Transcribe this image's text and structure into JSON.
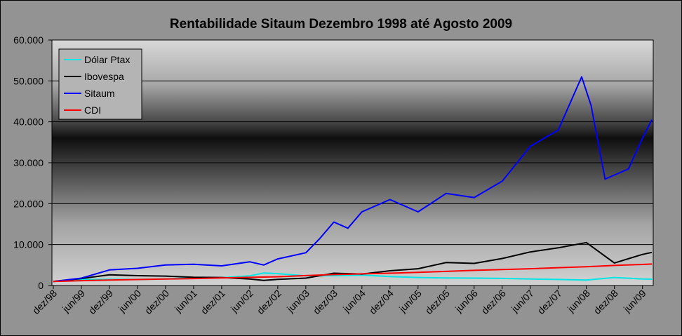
{
  "chart_data": {
    "type": "line",
    "title": "Rentabilidade Sitaum  Dezembro 1998 até Agosto 2009",
    "xlabel": "",
    "ylabel": "",
    "ylim": [
      0,
      60000
    ],
    "y_ticks": [
      0,
      10000,
      20000,
      30000,
      40000,
      50000,
      60000
    ],
    "y_tick_labels": [
      "0",
      "10.000",
      "20.000",
      "30.000",
      "40.000",
      "50.000",
      "60.000"
    ],
    "x_tick_labels": [
      "dez/98",
      "jun/99",
      "dez/99",
      "jun/00",
      "dez/00",
      "jun/01",
      "dez/01",
      "jun/02",
      "dez/02",
      "jun/03",
      "dez/03",
      "jun/04",
      "dez/04",
      "jun/05",
      "dez/05",
      "jun/06",
      "dez/06",
      "jun/07",
      "dez/07",
      "jun/08",
      "dez/08",
      "jun/09"
    ],
    "grid": true,
    "legend_position": "top-left",
    "series": [
      {
        "name": "Dólar Ptax",
        "color": "#00e5e5",
        "x": [
          "dez/98",
          "jun/99",
          "dez/99",
          "jun/00",
          "dez/00",
          "jun/01",
          "dez/01",
          "jun/02",
          "set/02",
          "dez/02",
          "jun/03",
          "dez/03",
          "jun/04",
          "dez/04",
          "jun/05",
          "dez/05",
          "jun/06",
          "dez/06",
          "jun/07",
          "dez/07",
          "jun/08",
          "dez/08",
          "jun/09",
          "ago/09"
        ],
        "values": [
          1000,
          1450,
          1500,
          1470,
          1620,
          1870,
          1900,
          2350,
          3050,
          2900,
          2350,
          2400,
          2550,
          2200,
          1950,
          1830,
          1800,
          1740,
          1580,
          1480,
          1340,
          1950,
          1600,
          1540
        ]
      },
      {
        "name": "Ibovespa",
        "color": "#000000",
        "x": [
          "dez/98",
          "jun/99",
          "dez/99",
          "jun/00",
          "dez/00",
          "jun/01",
          "dez/01",
          "jun/02",
          "set/02",
          "dez/02",
          "jun/03",
          "dez/03",
          "jun/04",
          "dez/04",
          "jun/05",
          "dez/05",
          "jun/06",
          "dez/06",
          "jun/07",
          "dez/07",
          "jun/08",
          "dez/08",
          "jun/09",
          "ago/09"
        ],
        "values": [
          1000,
          1700,
          2600,
          2400,
          2300,
          2000,
          1950,
          1600,
          1250,
          1500,
          1800,
          3000,
          2800,
          3600,
          4100,
          5600,
          5400,
          6600,
          8200,
          9200,
          10500,
          5500,
          7600,
          8100
        ]
      },
      {
        "name": "Sitaum",
        "color": "#0000ff",
        "x": [
          "dez/98",
          "jun/99",
          "dez/99",
          "jun/00",
          "dez/00",
          "jun/01",
          "dez/01",
          "jun/02",
          "set/02",
          "dez/02",
          "jun/03",
          "set/03",
          "dez/03",
          "mar/04",
          "jun/04",
          "dez/04",
          "jun/05",
          "dez/05",
          "jun/06",
          "dez/06",
          "jun/07",
          "dez/07",
          "mai/08",
          "jul/08",
          "out/08",
          "dez/08",
          "mar/09",
          "jun/09",
          "ago/09"
        ],
        "values": [
          1000,
          1800,
          3800,
          4200,
          5000,
          5200,
          4800,
          5800,
          5000,
          6500,
          8000,
          11500,
          15500,
          14000,
          18000,
          21000,
          18000,
          22500,
          21500,
          25500,
          34000,
          38000,
          51000,
          44000,
          26000,
          27000,
          28500,
          36000,
          40500
        ]
      },
      {
        "name": "CDI",
        "color": "#ff0000",
        "x": [
          "dez/98",
          "jun/99",
          "dez/99",
          "jun/00",
          "dez/00",
          "jun/01",
          "dez/01",
          "jun/02",
          "dez/02",
          "jun/03",
          "dez/03",
          "jun/04",
          "dez/04",
          "jun/05",
          "dez/05",
          "jun/06",
          "dez/06",
          "jun/07",
          "dez/07",
          "jun/08",
          "dez/08",
          "jun/09",
          "ago/09"
        ],
        "values": [
          1000,
          1180,
          1320,
          1450,
          1570,
          1700,
          1850,
          1980,
          2150,
          2420,
          2680,
          2850,
          3000,
          3200,
          3450,
          3700,
          3900,
          4100,
          4350,
          4600,
          4900,
          5150,
          5250
        ]
      }
    ]
  }
}
